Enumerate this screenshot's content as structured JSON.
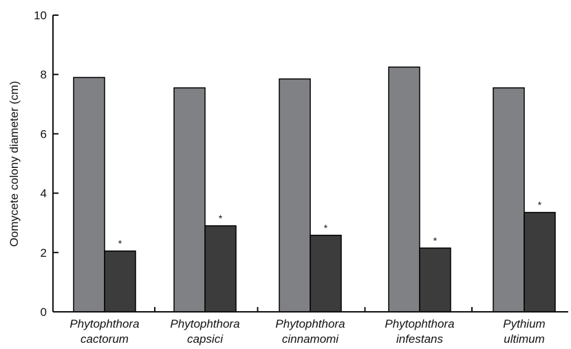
{
  "colors": {
    "control": "#808184",
    "treated": "#3c3c3c",
    "axis": "#111111"
  },
  "chart_data": {
    "type": "bar",
    "ylabel": "Oomycete colony diameter (cm)",
    "xlabel": "",
    "ylim": [
      0,
      10
    ],
    "yticks": [
      0,
      2,
      4,
      6,
      8,
      10
    ],
    "categories": [
      [
        "Phytophthora",
        "cactorum"
      ],
      [
        "Phytophthora",
        "capsici"
      ],
      [
        "Phytophthora",
        "cinnamomi"
      ],
      [
        "Phytophthora",
        "infestans"
      ],
      [
        "Pythium",
        "ultimum"
      ]
    ],
    "series": [
      {
        "values": [
          7.9,
          7.55,
          7.85,
          8.25,
          7.55
        ],
        "color": "#808184"
      },
      {
        "values": [
          2.05,
          2.9,
          2.58,
          2.15,
          3.35
        ],
        "color": "#3c3c3c"
      }
    ],
    "annotations": {
      "marker": "*",
      "series_index": 1,
      "categories": [
        0,
        1,
        2,
        3,
        4
      ]
    },
    "grid": false,
    "legend": "none"
  }
}
